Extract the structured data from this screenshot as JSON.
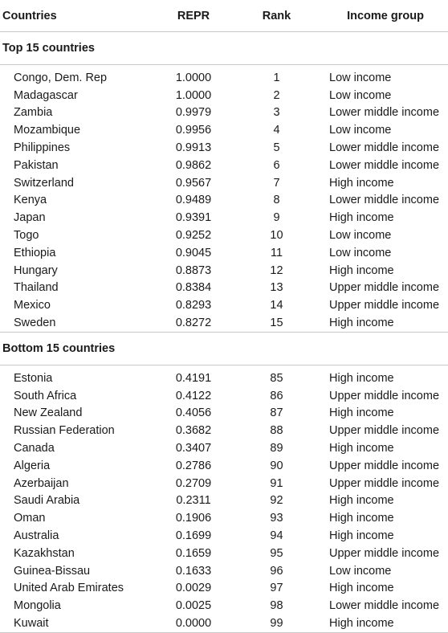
{
  "headers": [
    "Countries",
    "REPR",
    "Rank",
    "Income group"
  ],
  "sections": [
    {
      "title": "Top 15 countries",
      "rows": [
        [
          "Congo, Dem. Rep",
          "1.0000",
          "1",
          "Low income"
        ],
        [
          "Madagascar",
          "1.0000",
          "2",
          "Low income"
        ],
        [
          "Zambia",
          "0.9979",
          "3",
          "Lower middle income"
        ],
        [
          "Mozambique",
          "0.9956",
          "4",
          "Low income"
        ],
        [
          "Philippines",
          "0.9913",
          "5",
          "Lower middle income"
        ],
        [
          "Pakistan",
          "0.9862",
          "6",
          "Lower middle income"
        ],
        [
          "Switzerland",
          "0.9567",
          "7",
          "High income"
        ],
        [
          "Kenya",
          "0.9489",
          "8",
          "Lower middle income"
        ],
        [
          "Japan",
          "0.9391",
          "9",
          "High income"
        ],
        [
          "Togo",
          "0.9252",
          "10",
          "Low income"
        ],
        [
          "Ethiopia",
          "0.9045",
          "11",
          "Low income"
        ],
        [
          "Hungary",
          "0.8873",
          "12",
          "High income"
        ],
        [
          "Thailand",
          "0.8384",
          "13",
          "Upper middle income"
        ],
        [
          "Mexico",
          "0.8293",
          "14",
          "Upper middle income"
        ],
        [
          "Sweden",
          "0.8272",
          "15",
          "High income"
        ]
      ]
    },
    {
      "title": "Bottom 15 countries",
      "rows": [
        [
          "Estonia",
          "0.4191",
          "85",
          "High income"
        ],
        [
          "South Africa",
          "0.4122",
          "86",
          "Upper middle income"
        ],
        [
          "New Zealand",
          "0.4056",
          "87",
          "High income"
        ],
        [
          "Russian Federation",
          "0.3682",
          "88",
          "Upper middle income"
        ],
        [
          "Canada",
          "0.3407",
          "89",
          "High income"
        ],
        [
          "Algeria",
          "0.2786",
          "90",
          "Upper middle income"
        ],
        [
          "Azerbaijan",
          "0.2709",
          "91",
          "Upper middle income"
        ],
        [
          "Saudi Arabia",
          "0.2311",
          "92",
          "High income"
        ],
        [
          "Oman",
          "0.1906",
          "93",
          "High income"
        ],
        [
          "Australia",
          "0.1699",
          "94",
          "High income"
        ],
        [
          "Kazakhstan",
          "0.1659",
          "95",
          "Upper middle income"
        ],
        [
          "Guinea-Bissau",
          "0.1633",
          "96",
          "Low income"
        ],
        [
          "United Arab Emirates",
          "0.0029",
          "97",
          "High income"
        ],
        [
          "Mongolia",
          "0.0025",
          "98",
          "Lower middle income"
        ],
        [
          "Kuwait",
          "0.0000",
          "99",
          "High income"
        ]
      ]
    }
  ]
}
